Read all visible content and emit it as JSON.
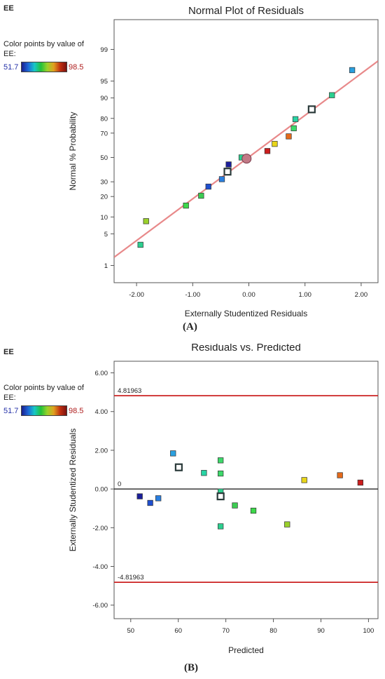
{
  "figure_labels": [
    "(A)",
    "(B)"
  ],
  "legend": {
    "title": "EE",
    "description": "Color points by value of EE:",
    "min_label": "51.7",
    "max_label": "98.5",
    "gradient_colors": [
      "#1b1f8c",
      "#1e66d8",
      "#17c7c7",
      "#22c13a",
      "#9ad12a",
      "#e0a020",
      "#c23010",
      "#7a1210"
    ]
  },
  "chart_data": [
    {
      "type": "scatter",
      "title": "Normal Plot of Residuals",
      "xlabel": "Externally Studentized Residuals",
      "ylabel": "Normal % Probability",
      "xlim": [
        -2.4,
        2.3
      ],
      "y_scale": "normal-probability",
      "x_ticks": [
        -2.0,
        -1.0,
        0.0,
        1.0,
        2.0
      ],
      "x_tick_labels": [
        "-2.00",
        "-1.00",
        "0.00",
        "1.00",
        "2.00"
      ],
      "y_ticks": [
        1,
        5,
        10,
        20,
        30,
        50,
        70,
        80,
        90,
        95,
        99
      ],
      "y_tick_labels": [
        "1",
        "5",
        "10",
        "20",
        "30",
        "50",
        "70",
        "80",
        "90",
        "95",
        "99"
      ],
      "fit_line": {
        "color": "#e8898a"
      },
      "points": [
        {
          "x": -1.93,
          "y": 3.0,
          "color": "#2ccf8f"
        },
        {
          "x": -1.83,
          "y": 8.5,
          "color": "#9ad12a"
        },
        {
          "x": -1.12,
          "y": 15.0,
          "color": "#3dd94a"
        },
        {
          "x": -0.85,
          "y": 20.5,
          "color": "#3ccc52"
        },
        {
          "x": -0.72,
          "y": 26.5,
          "color": "#1f4fcf"
        },
        {
          "x": -0.48,
          "y": 32.0,
          "color": "#2a7fe0"
        },
        {
          "x": -0.38,
          "y": 38.0,
          "color": "#ffffff",
          "style": "hollow"
        },
        {
          "x": -0.36,
          "y": 44.0,
          "color": "#1b1f9a"
        },
        {
          "x": -0.13,
          "y": 50.0,
          "color": "#2ccf8f"
        },
        {
          "x": -0.04,
          "y": 49.0,
          "color": "#c27a86",
          "style": "circle"
        },
        {
          "x": 0.33,
          "y": 55.5,
          "color": "#cc1d1d"
        },
        {
          "x": 0.46,
          "y": 61.5,
          "color": "#e8d51a"
        },
        {
          "x": 0.71,
          "y": 67.5,
          "color": "#e46a1a"
        },
        {
          "x": 0.8,
          "y": 73.5,
          "color": "#3dd96a"
        },
        {
          "x": 0.83,
          "y": 79.5,
          "color": "#28d4a4"
        },
        {
          "x": 1.12,
          "y": 85.0,
          "color": "#ffffff",
          "style": "hollow"
        },
        {
          "x": 1.48,
          "y": 91.0,
          "color": "#2ccf8f"
        },
        {
          "x": 1.84,
          "y": 97.0,
          "color": "#2aa0e0"
        }
      ]
    },
    {
      "type": "scatter",
      "title": "Residuals vs. Predicted",
      "xlabel": "Predicted",
      "ylabel": "Externally Studentized Residuals",
      "xlim": [
        46.5,
        102
      ],
      "ylim": [
        -6.7,
        6.6
      ],
      "x_ticks": [
        50,
        60,
        70,
        80,
        90,
        100
      ],
      "x_tick_labels": [
        "50",
        "60",
        "70",
        "80",
        "90",
        "100"
      ],
      "y_ticks": [
        -6,
        -4,
        -2,
        0,
        2,
        4,
        6
      ],
      "y_tick_labels": [
        "-6.00",
        "-4.00",
        "-2.00",
        "0.00",
        "2.00",
        "4.00",
        "6.00"
      ],
      "reference_lines": [
        {
          "y": 4.81963,
          "label": "4.81963",
          "color": "#cc2222"
        },
        {
          "y": 0,
          "label": "0",
          "color": "#111111"
        },
        {
          "y": -4.81963,
          "label": "-4.81963",
          "color": "#cc2222"
        }
      ],
      "points": [
        {
          "x": 51.9,
          "y": -0.38,
          "color": "#1b1f9a"
        },
        {
          "x": 54.1,
          "y": -0.72,
          "color": "#1f4fcf"
        },
        {
          "x": 55.8,
          "y": -0.48,
          "color": "#2a7fe0"
        },
        {
          "x": 58.9,
          "y": 1.84,
          "color": "#2aa0e0"
        },
        {
          "x": 60.1,
          "y": 1.12,
          "color": "#ffffff",
          "style": "hollow"
        },
        {
          "x": 65.4,
          "y": 0.83,
          "color": "#28d4a4"
        },
        {
          "x": 68.9,
          "y": 1.48,
          "color": "#3dd96a"
        },
        {
          "x": 68.9,
          "y": 0.8,
          "color": "#3dd96a"
        },
        {
          "x": 68.9,
          "y": -0.13,
          "color": "#2ccf8f"
        },
        {
          "x": 68.9,
          "y": -0.38,
          "color": "#ffffff",
          "style": "hollow"
        },
        {
          "x": 68.9,
          "y": -1.93,
          "color": "#2ccf8f"
        },
        {
          "x": 71.9,
          "y": -0.85,
          "color": "#3ccc52"
        },
        {
          "x": 75.8,
          "y": -1.12,
          "color": "#3dd94a"
        },
        {
          "x": 82.9,
          "y": -1.83,
          "color": "#9ad12a"
        },
        {
          "x": 86.5,
          "y": 0.46,
          "color": "#e8d51a"
        },
        {
          "x": 94.0,
          "y": 0.71,
          "color": "#e46a1a"
        },
        {
          "x": 98.3,
          "y": 0.33,
          "color": "#cc1d1d"
        }
      ]
    }
  ]
}
